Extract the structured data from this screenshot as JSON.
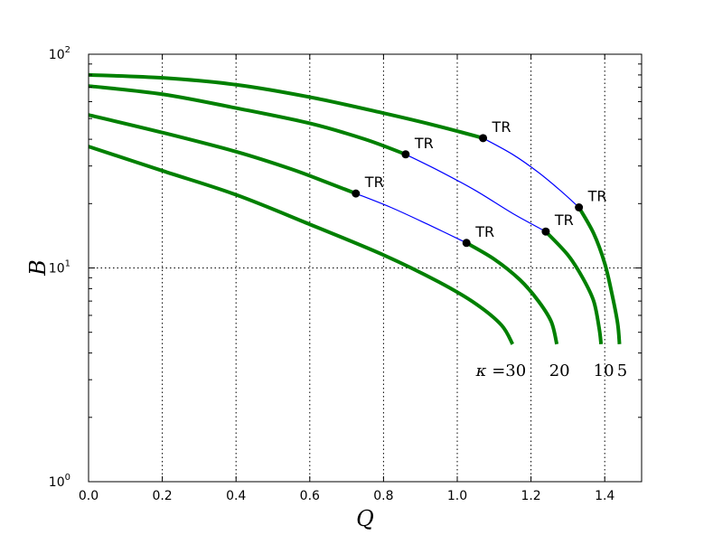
{
  "chart_data": {
    "type": "line",
    "title": "",
    "xlabel": "Q",
    "ylabel": "B",
    "xlim": [
      0.0,
      1.5
    ],
    "ylim": [
      1,
      100
    ],
    "yscale": "log",
    "grid": "on",
    "legend": "none",
    "x_ticks": [
      "0.0",
      "0.2",
      "0.4",
      "0.6",
      "0.8",
      "1.0",
      "1.2",
      "1.4"
    ],
    "y_ticks": [
      {
        "base": "10",
        "exp": "0",
        "value": 1
      },
      {
        "base": "10",
        "exp": "1",
        "value": 10
      },
      {
        "base": "10",
        "exp": "2",
        "value": 100
      }
    ],
    "colors": {
      "stable": "#008000",
      "unstable": "#0000ff",
      "point": "#000000"
    },
    "series": [
      {
        "kappa_label": "5",
        "stable": [
          [
            0.0,
            80.0
          ],
          [
            0.2,
            77.5
          ],
          [
            0.4,
            72.0
          ],
          [
            0.6,
            63.0
          ],
          [
            0.8,
            53.0
          ],
          [
            0.95,
            46.0
          ],
          [
            1.07,
            40.5
          ]
        ],
        "unstable": [
          [
            1.07,
            40.5
          ],
          [
            1.15,
            34.0
          ],
          [
            1.22,
            28.0
          ],
          [
            1.28,
            23.0
          ],
          [
            1.33,
            19.2
          ]
        ],
        "stable_tail": [
          [
            1.33,
            19.2
          ],
          [
            1.37,
            14.5
          ],
          [
            1.4,
            10.5
          ],
          [
            1.42,
            7.5
          ],
          [
            1.435,
            5.5
          ],
          [
            1.44,
            4.4
          ]
        ]
      },
      {
        "kappa_label": "10",
        "stable": [
          [
            0.0,
            71.0
          ],
          [
            0.2,
            65.0
          ],
          [
            0.4,
            56.0
          ],
          [
            0.6,
            47.5
          ],
          [
            0.75,
            40.0
          ],
          [
            0.86,
            34.0
          ]
        ],
        "unstable": [
          [
            0.86,
            34.0
          ],
          [
            0.95,
            28.5
          ],
          [
            1.05,
            23.0
          ],
          [
            1.15,
            18.0
          ],
          [
            1.24,
            14.8
          ]
        ],
        "stable_tail": [
          [
            1.24,
            14.8
          ],
          [
            1.3,
            11.5
          ],
          [
            1.34,
            9.0
          ],
          [
            1.37,
            7.0
          ],
          [
            1.385,
            5.2
          ],
          [
            1.39,
            4.4
          ]
        ]
      },
      {
        "kappa_label": "20",
        "stable": [
          [
            0.0,
            52.0
          ],
          [
            0.2,
            43.0
          ],
          [
            0.4,
            35.0
          ],
          [
            0.55,
            29.0
          ],
          [
            0.65,
            25.0
          ],
          [
            0.725,
            22.3
          ]
        ],
        "unstable": [
          [
            0.725,
            22.3
          ],
          [
            0.82,
            19.2
          ],
          [
            0.92,
            16.0
          ],
          [
            1.025,
            13.1
          ]
        ],
        "stable_tail": [
          [
            1.025,
            13.1
          ],
          [
            1.1,
            11.0
          ],
          [
            1.17,
            8.8
          ],
          [
            1.22,
            7.0
          ],
          [
            1.255,
            5.6
          ],
          [
            1.27,
            4.4
          ]
        ]
      },
      {
        "kappa_label": "30",
        "stable": [
          [
            0.0,
            37.0
          ],
          [
            0.2,
            28.5
          ],
          [
            0.4,
            22.0
          ],
          [
            0.6,
            16.0
          ],
          [
            0.8,
            11.5
          ],
          [
            0.95,
            8.6
          ],
          [
            1.05,
            6.8
          ],
          [
            1.12,
            5.4
          ],
          [
            1.15,
            4.4
          ]
        ]
      }
    ],
    "points": [
      {
        "x": 1.07,
        "y": 40.5,
        "label": "TR"
      },
      {
        "x": 0.86,
        "y": 34.0,
        "label": "TR"
      },
      {
        "x": 0.725,
        "y": 22.3,
        "label": "TR"
      },
      {
        "x": 1.025,
        "y": 13.1,
        "label": "TR"
      },
      {
        "x": 1.24,
        "y": 14.8,
        "label": "TR"
      },
      {
        "x": 1.33,
        "y": 19.2,
        "label": "TR"
      }
    ],
    "kappa_prefix": "κ ="
  }
}
